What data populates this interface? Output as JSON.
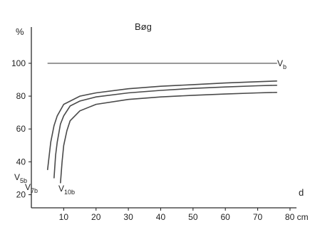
{
  "chart_data": {
    "type": "line",
    "title": "Bøg",
    "ylabel": "%",
    "xlabel": "d",
    "x_unit": "cm",
    "xlim": [
      0,
      82
    ],
    "ylim": [
      12,
      116
    ],
    "xticks": [
      10,
      20,
      30,
      40,
      50,
      60,
      70,
      80
    ],
    "xtick_labels": [
      "10",
      "20",
      "30",
      "40",
      "50",
      "60",
      "70",
      "80 cm"
    ],
    "yticks": [
      20,
      40,
      60,
      80,
      100
    ],
    "ytick_labels": [
      "20",
      "40",
      "60",
      "80",
      "100"
    ],
    "series": [
      {
        "name": "V_b",
        "label_main": "V",
        "label_sub": "b",
        "x": [
          5,
          76
        ],
        "y": [
          100,
          100
        ]
      },
      {
        "name": "V_5b",
        "label_main": "V",
        "label_sub": "5b",
        "x": [
          5,
          6,
          7,
          8,
          10,
          15,
          20,
          30,
          40,
          50,
          60,
          70,
          76
        ],
        "y": [
          35,
          52,
          62,
          68,
          75,
          80,
          82,
          84.5,
          86,
          87,
          88,
          88.8,
          89.2
        ]
      },
      {
        "name": "V_7b",
        "label_main": "V",
        "label_sub": "7b",
        "x": [
          7,
          7.5,
          8,
          9,
          10,
          12,
          15,
          20,
          30,
          40,
          50,
          60,
          70,
          76
        ],
        "y": [
          30,
          44,
          52,
          63,
          68,
          74,
          77,
          79.5,
          82,
          83.5,
          84.7,
          85.6,
          86.3,
          86.6
        ]
      },
      {
        "name": "V_10b",
        "label_main": "V",
        "label_sub": "10b",
        "x": [
          9,
          9.5,
          10,
          11,
          12,
          15,
          20,
          30,
          40,
          50,
          60,
          70,
          76
        ],
        "y": [
          27,
          40,
          50,
          59,
          65,
          71,
          75,
          78,
          79.5,
          80.5,
          81.3,
          82,
          82.3
        ]
      }
    ]
  }
}
